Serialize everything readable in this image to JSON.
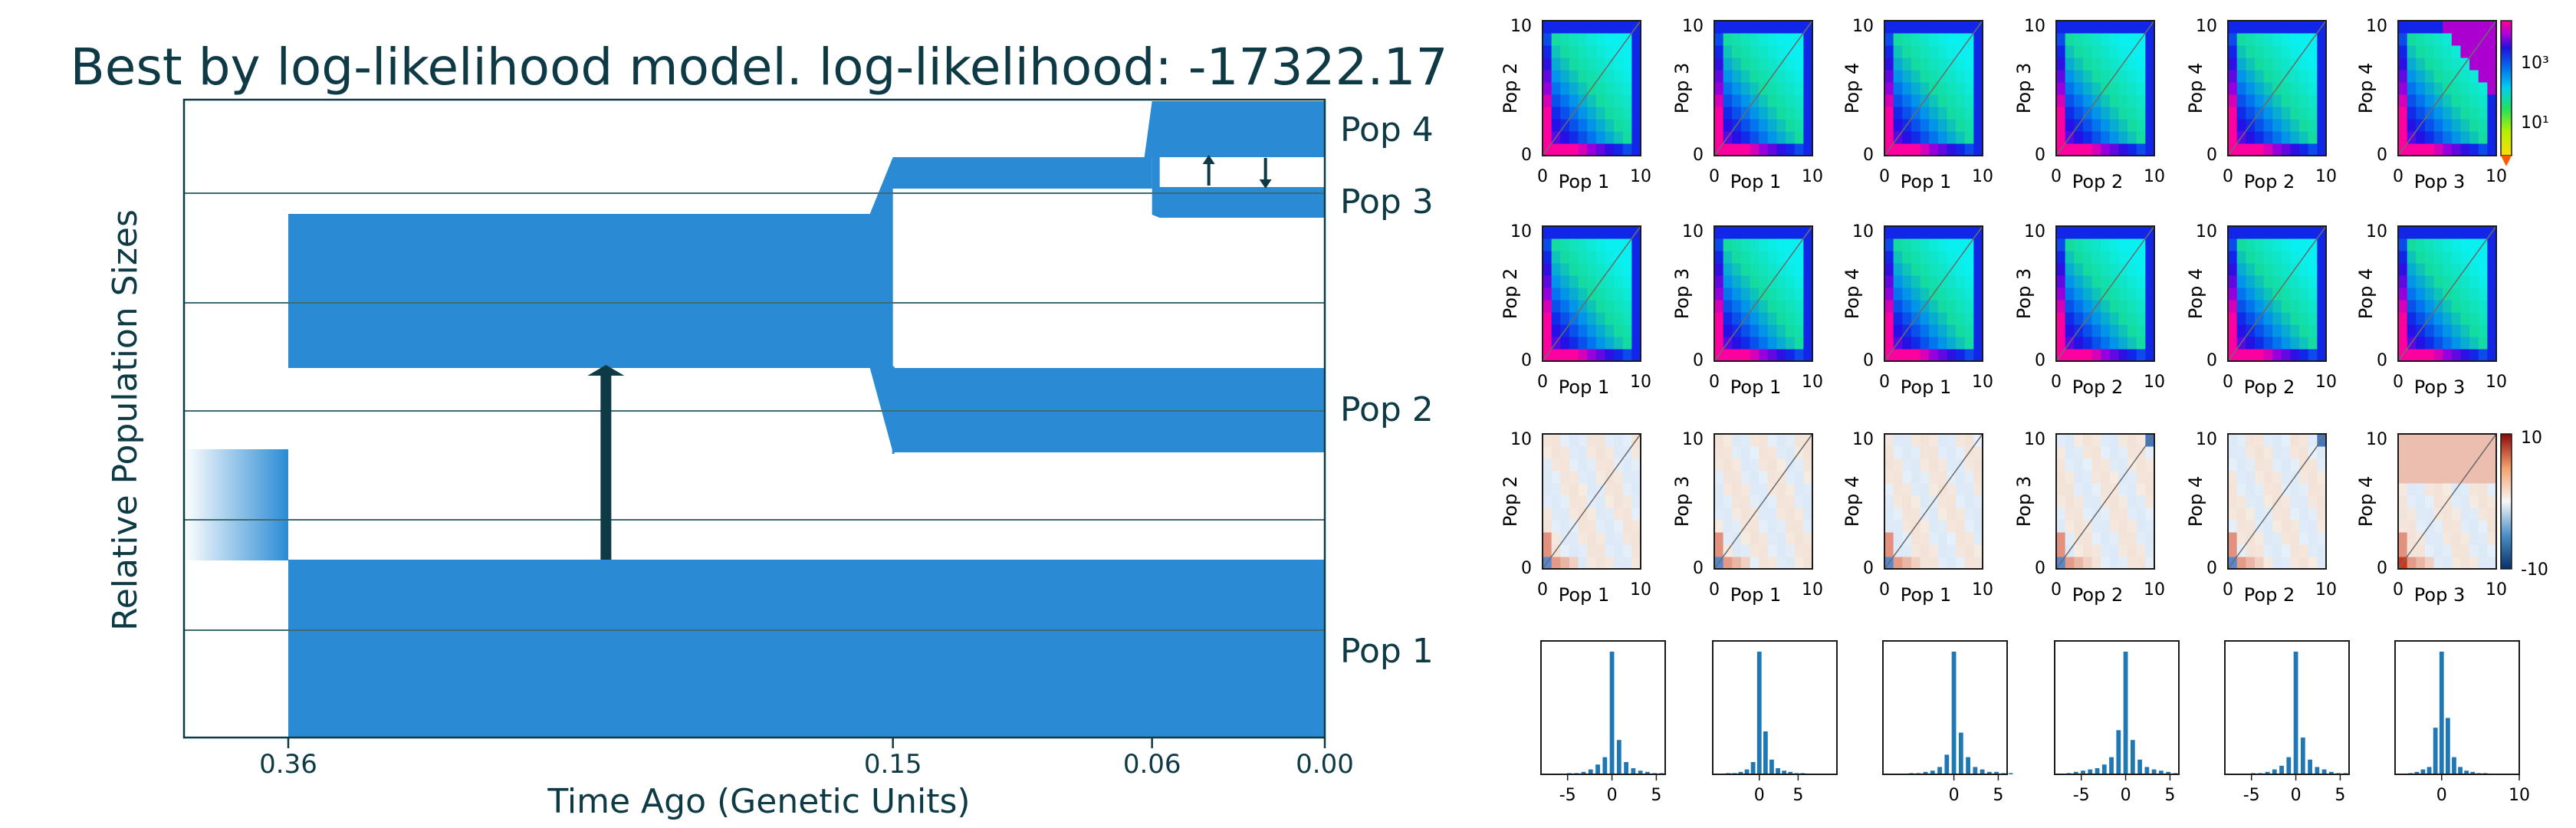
{
  "chart_data": [
    {
      "type": "area",
      "kind": "demographic-model",
      "title": "Best by log-likelihood model. log-likelihood: -17322.17",
      "xlabel": "Time Ago (Genetic Units)",
      "ylabel": "Relative Population Sizes",
      "x_ticks": [
        "0.36",
        "0.15",
        "0.06",
        "0.00"
      ],
      "x_tick_values": [
        0.36,
        0.15,
        0.06,
        0.0
      ],
      "populations": [
        "Pop 4",
        "Pop 3",
        "Pop 2",
        "Pop 1"
      ],
      "split_times": [
        0.36,
        0.15,
        0.06
      ],
      "migration": [
        {
          "from": "Pop 1",
          "to": "ancestor of Pop 2-4",
          "direction": "up"
        },
        {
          "from": "Pop 3",
          "to": "Pop 4",
          "direction": "up"
        },
        {
          "from": "Pop 4",
          "to": "Pop 3",
          "direction": "down"
        }
      ],
      "colors": {
        "population": "#2a8bd4",
        "migration": "#0e3a45",
        "axis": "#0e3a45"
      }
    },
    {
      "type": "heatmap",
      "kind": "joint-sfs-grid",
      "rows": [
        "data",
        "model",
        "residuals"
      ],
      "pairs": [
        {
          "x": "Pop 1",
          "y": "Pop 2"
        },
        {
          "x": "Pop 1",
          "y": "Pop 3"
        },
        {
          "x": "Pop 1",
          "y": "Pop 4"
        },
        {
          "x": "Pop 2",
          "y": "Pop 3"
        },
        {
          "x": "Pop 2",
          "y": "Pop 4"
        },
        {
          "x": "Pop 3",
          "y": "Pop 4"
        }
      ],
      "tick_min": "0",
      "tick_max": "10",
      "sfs_colorbar_ticks": [
        "10³",
        "10¹"
      ],
      "residual_colorbar_ticks": [
        "10",
        "-10"
      ]
    },
    {
      "type": "bar",
      "kind": "residual-histograms",
      "x_ticks": [
        [
          "-5",
          "0",
          "5"
        ],
        [
          "0",
          "5"
        ],
        [
          "0",
          "5"
        ],
        [
          "-5",
          "0",
          "5"
        ],
        [
          "-5",
          "0",
          "5"
        ],
        [
          "0",
          "10"
        ]
      ],
      "bins": [
        [
          0,
          0,
          0,
          1,
          1,
          2,
          4,
          8,
          14,
          100,
          28,
          10,
          5,
          3,
          2,
          1,
          1,
          0
        ],
        [
          0,
          1,
          1,
          2,
          4,
          10,
          100,
          35,
          12,
          5,
          3,
          2,
          1,
          1,
          0,
          0,
          0,
          0
        ],
        [
          0,
          0,
          1,
          1,
          2,
          3,
          6,
          16,
          100,
          34,
          14,
          6,
          4,
          2,
          2,
          1,
          1,
          0
        ],
        [
          0,
          1,
          2,
          3,
          4,
          5,
          8,
          14,
          36,
          100,
          28,
          12,
          6,
          4,
          3,
          2,
          1,
          0
        ],
        [
          0,
          0,
          1,
          1,
          2,
          4,
          7,
          14,
          100,
          30,
          12,
          6,
          4,
          2,
          1,
          1,
          0,
          0
        ],
        [
          0,
          0,
          1,
          2,
          4,
          6,
          38,
          100,
          46,
          14,
          6,
          3,
          2,
          1,
          1,
          0,
          0,
          0
        ]
      ]
    }
  ]
}
